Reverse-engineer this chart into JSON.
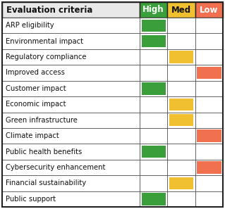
{
  "header": "Evaluation criteria",
  "col_labels": [
    "High",
    "Med",
    "Low"
  ],
  "col_colors": [
    "#3a9e3a",
    "#f0c030",
    "#f07050"
  ],
  "col_label_text_color": [
    "#ffffff",
    "#111111",
    "#ffffff"
  ],
  "rows": [
    {
      "label": "ARP eligibility",
      "col": 0
    },
    {
      "label": "Environmental impact",
      "col": 0
    },
    {
      "label": "Regulatory compliance",
      "col": 1
    },
    {
      "label": "Improved access",
      "col": 2
    },
    {
      "label": "Customer impact",
      "col": 0
    },
    {
      "label": "Economic impact",
      "col": 1
    },
    {
      "label": "Green infrastructure",
      "col": 1
    },
    {
      "label": "Climate impact",
      "col": 2
    },
    {
      "label": "Public health benefits",
      "col": 0
    },
    {
      "label": "Cybersecurity enhancement",
      "col": 2
    },
    {
      "label": "Financial sustainability",
      "col": 1
    },
    {
      "label": "Public support",
      "col": 0
    }
  ],
  "bg_color": "#ffffff",
  "border_color": "#222222",
  "cell_colors": [
    "#3a9e3a",
    "#f0c030",
    "#f07050"
  ],
  "figsize": [
    3.19,
    2.97
  ],
  "dpi": 100
}
